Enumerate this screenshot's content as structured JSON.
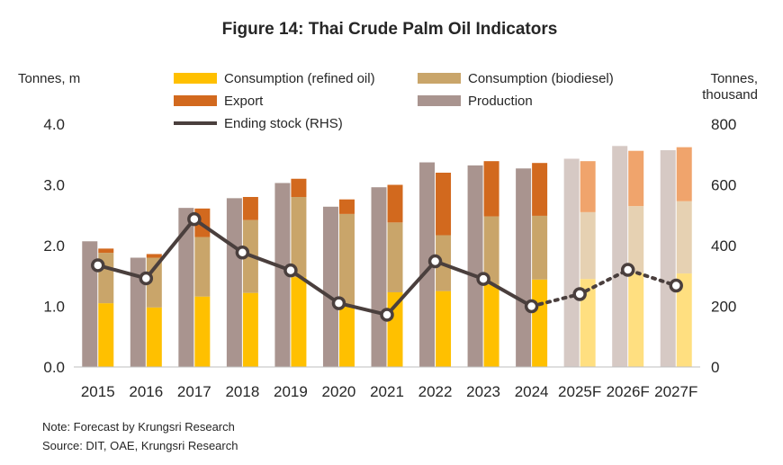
{
  "chart_data": {
    "type": "bar",
    "title": "Figure 14: Thai Crude Palm Oil Indicators",
    "ylabel_left": "Tonnes, m",
    "ylabel_right": [
      "Tonnes,",
      "thousand"
    ],
    "ylim_left": [
      0,
      4
    ],
    "ylim_right": [
      0,
      800
    ],
    "yticks_left": [
      "0.0",
      "1.0",
      "2.0",
      "3.0",
      "4.0"
    ],
    "yticks_right": [
      "0",
      "200",
      "400",
      "600",
      "800"
    ],
    "categories": [
      "2015",
      "2016",
      "2017",
      "2018",
      "2019",
      "2020",
      "2021",
      "2022",
      "2023",
      "2024",
      "2025F",
      "2026F",
      "2027F"
    ],
    "forecast_from_index": 10,
    "production": {
      "name": "Production",
      "color": "#a9948f",
      "forecast_color": "#d6c9c4",
      "values": [
        2.07,
        1.8,
        2.62,
        2.78,
        3.03,
        2.64,
        2.96,
        3.37,
        3.32,
        3.27,
        3.43,
        3.64,
        3.57
      ]
    },
    "stacked_series": [
      {
        "name": "Consumption (refined oil)",
        "color": "#ffc000",
        "forecast_color": "#ffdf80",
        "values": [
          1.05,
          0.98,
          1.16,
          1.22,
          1.48,
          1.0,
          1.23,
          1.25,
          1.36,
          1.44,
          1.45,
          1.55,
          1.54
        ]
      },
      {
        "name": "Consumption (biodiesel)",
        "color": "#c9a56a",
        "forecast_color": "#e6d1b2",
        "values": [
          0.83,
          0.82,
          0.98,
          1.2,
          1.32,
          1.52,
          1.15,
          0.92,
          1.12,
          1.05,
          1.1,
          1.1,
          1.19
        ]
      },
      {
        "name": "Export",
        "color": "#d2691e",
        "forecast_color": "#f0a46c",
        "values": [
          0.07,
          0.06,
          0.47,
          0.38,
          0.3,
          0.24,
          0.62,
          1.03,
          0.91,
          0.87,
          0.84,
          0.91,
          0.89
        ]
      }
    ],
    "line_series": {
      "name": "Ending stock (RHS)",
      "color": "#4a3f3d",
      "axis": "right",
      "values": [
        335,
        292,
        487,
        377,
        318,
        210,
        172,
        348,
        290,
        200,
        240,
        320,
        268
      ]
    },
    "legend_order": [
      "Consumption (refined oil)",
      "Consumption (biodiesel)",
      "Export",
      "Production",
      "Ending stock (RHS)"
    ],
    "legend_position": "top-center",
    "grid": false
  },
  "notes": {
    "note": "Note: Forecast by Krungsri Research",
    "source": "Source: DIT, OAE, Krungsri Research"
  }
}
